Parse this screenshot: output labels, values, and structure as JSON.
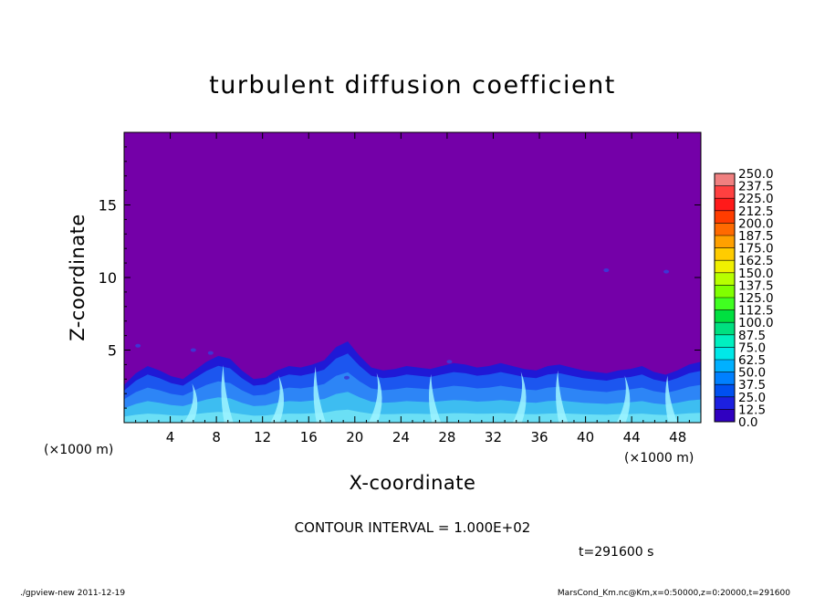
{
  "chart_data": {
    "type": "heatmap",
    "title": "turbulent diffusion coefficient",
    "xlabel": "X-coordinate",
    "ylabel": "Z-coordinate",
    "x_unit": "(×1000 m)",
    "x_unit_right": "(×1000 m)",
    "xlim": [
      0,
      50
    ],
    "ylim": [
      0,
      20
    ],
    "x_ticks": [
      "4",
      "8",
      "12",
      "16",
      "20",
      "24",
      "28",
      "32",
      "36",
      "40",
      "44",
      "48"
    ],
    "y_ticks": [
      "5",
      "10",
      "15"
    ],
    "contour_interval": "CONTOUR INTERVAL = 1.000E+02",
    "time_label": "t=291600 s",
    "footer_left": "./gpview-new  2011-12-19",
    "footer_right": "MarsCond_Km.nc@Km,x=0:50000,z=0:20000,t=291600",
    "background_color": "#7400a8",
    "colorbar": {
      "labels": [
        "250.0",
        "237.5",
        "225.0",
        "212.5",
        "200.0",
        "187.5",
        "175.0",
        "162.5",
        "150.0",
        "137.5",
        "125.0",
        "112.5",
        "100.0",
        "87.5",
        "75.0",
        "62.5",
        "50.0",
        "37.5",
        "25.0",
        "12.5",
        "0.0"
      ],
      "colors": [
        "#f08080",
        "#ff4040",
        "#ff1a1a",
        "#ff3c00",
        "#ff6a00",
        "#ffa000",
        "#ffcc00",
        "#f0f000",
        "#b8ff00",
        "#80ff00",
        "#40ff20",
        "#00e040",
        "#00e080",
        "#00f0c0",
        "#00e8e8",
        "#00b0ff",
        "#0080ff",
        "#0050f0",
        "#1c20e0",
        "#3000c0"
      ]
    },
    "turbulent_layer_top_km": [
      2.6,
      3.4,
      3.9,
      3.6,
      3.2,
      3.0,
      3.6,
      4.2,
      4.6,
      4.4,
      3.6,
      3.0,
      3.1,
      3.6,
      3.9,
      3.8,
      4.0,
      4.3,
      5.2,
      5.6,
      4.6,
      3.8,
      3.6,
      3.7,
      3.9,
      3.8,
      3.7,
      3.9,
      4.1,
      4.0,
      3.8,
      3.9,
      4.1,
      3.9,
      3.7,
      3.6,
      3.9,
      4.0,
      3.8,
      3.6,
      3.5,
      3.4,
      3.6,
      3.7,
      3.9,
      3.5,
      3.3,
      3.6,
      4.0,
      4.2
    ],
    "plumes_x_km": [
      5.5,
      9,
      13,
      17,
      21.5,
      27,
      34,
      38,
      43,
      47.5
    ]
  }
}
